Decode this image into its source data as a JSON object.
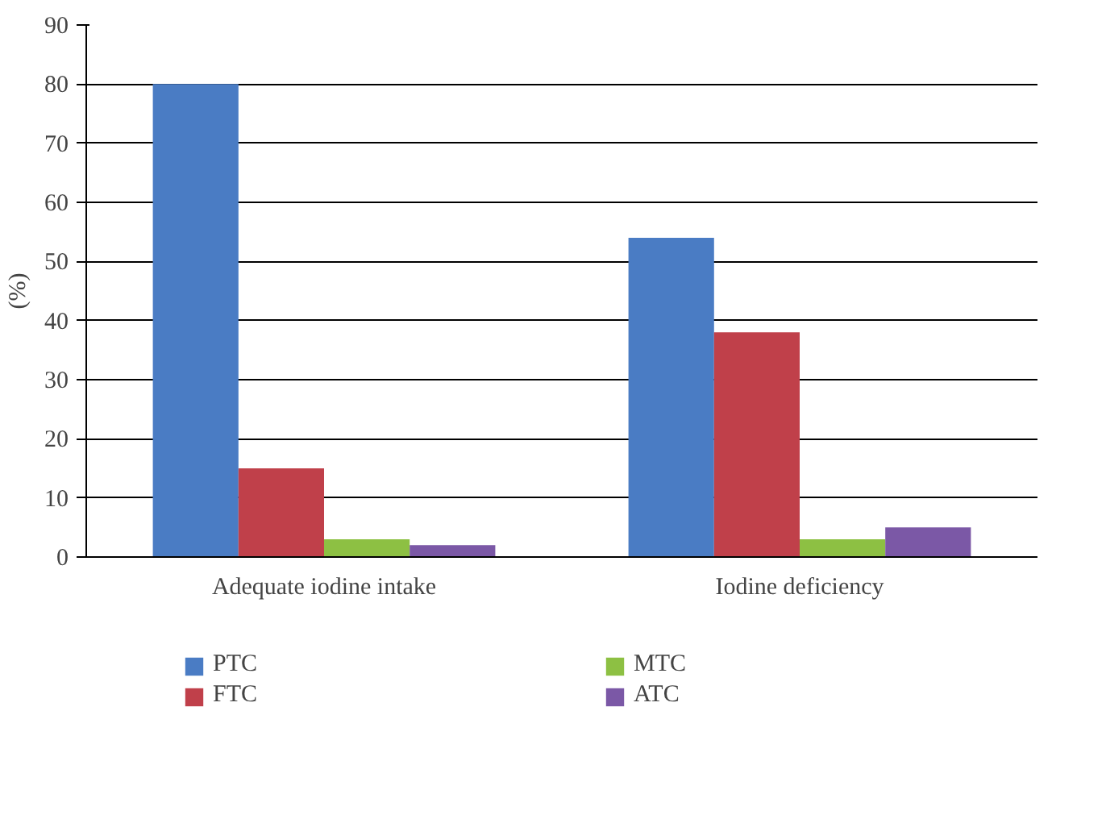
{
  "chart_data": {
    "type": "bar",
    "ylabel": "(%)",
    "categories": [
      "Adequate iodine intake",
      "Iodine deficiency"
    ],
    "series": [
      {
        "name": "PTC",
        "color": "#4a7cc4",
        "values": [
          80,
          54
        ]
      },
      {
        "name": "FTC",
        "color": "#c0404a",
        "values": [
          15,
          38
        ]
      },
      {
        "name": "MTC",
        "color": "#8dc043",
        "values": [
          3,
          3
        ]
      },
      {
        "name": "ATC",
        "color": "#7b58a6",
        "values": [
          2,
          5
        ]
      }
    ],
    "ylim": [
      0,
      90
    ],
    "yticks": [
      0,
      10,
      20,
      30,
      40,
      50,
      60,
      70,
      80,
      90
    ],
    "grid": "y",
    "legend": "bottom"
  }
}
